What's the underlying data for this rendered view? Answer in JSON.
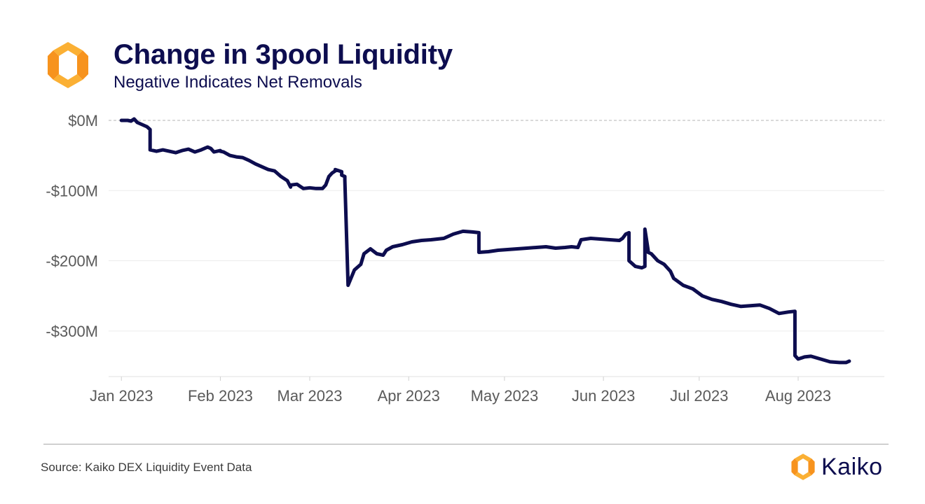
{
  "header": {
    "title": "Change in 3pool Liquidity",
    "subtitle": "Negative Indicates Net Removals"
  },
  "footer": {
    "source": "Source: Kaiko DEX Liquidity Event Data",
    "brand": "Kaiko"
  },
  "colors": {
    "title": "#0d0d4f",
    "line": "#0d0d4f",
    "logo_orange": "#f7931e",
    "logo_yellow": "#fbb034"
  },
  "icons": {
    "top_logo": "kaiko-logo-icon",
    "footer_logo": "kaiko-logo-icon"
  },
  "chart_data": {
    "type": "line",
    "title": "Change in 3pool Liquidity",
    "subtitle": "Negative Indicates Net Removals",
    "xlabel": "",
    "ylabel": "",
    "x_type": "date",
    "xlim": [
      "2022-12-28",
      "2023-08-28"
    ],
    "ylim": [
      -365,
      0
    ],
    "yticks": [
      0,
      -100,
      -200,
      -300
    ],
    "ytick_labels": [
      "$0M",
      "-$100M",
      "-$200M",
      "-$300M"
    ],
    "xticks": [
      "2023-01-01",
      "2023-02-01",
      "2023-03-01",
      "2023-04-01",
      "2023-05-01",
      "2023-06-01",
      "2023-07-01",
      "2023-08-01"
    ],
    "xtick_labels": [
      "Jan 2023",
      "Feb 2023",
      "Mar 2023",
      "Apr 2023",
      "May 2023",
      "Jun 2023",
      "Jul 2023",
      "Aug 2023"
    ],
    "grid": "horizontal",
    "zero_line": "dashed",
    "series": [
      {
        "x": [
          "2023-01-01",
          "2023-01-03",
          "2023-01-04",
          "2023-01-05",
          "2023-01-06",
          "2023-01-07",
          "2023-01-08",
          "2023-01-09",
          "2023-01-10",
          "2023-01-10",
          "2023-01-12",
          "2023-01-14",
          "2023-01-16",
          "2023-01-18",
          "2023-01-20",
          "2023-01-22",
          "2023-01-24",
          "2023-01-26",
          "2023-01-27",
          "2023-01-28",
          "2023-01-29",
          "2023-01-30",
          "2023-01-31",
          "2023-02-01",
          "2023-02-01",
          "2023-02-02",
          "2023-02-04",
          "2023-02-06",
          "2023-02-08",
          "2023-02-10",
          "2023-02-12",
          "2023-02-14",
          "2023-02-16",
          "2023-02-18",
          "2023-02-20",
          "2023-02-22",
          "2023-02-23",
          "2023-02-23",
          "2023-02-25",
          "2023-02-27",
          "2023-03-01",
          "2023-03-03",
          "2023-03-05",
          "2023-03-06",
          "2023-03-07",
          "2023-03-08",
          "2023-03-09",
          "2023-03-09",
          "2023-03-11",
          "2023-03-11",
          "2023-03-12",
          "2023-03-12",
          "2023-03-13",
          "2023-03-15",
          "2023-03-17",
          "2023-03-18",
          "2023-03-20",
          "2023-03-22",
          "2023-03-24",
          "2023-03-25",
          "2023-03-27",
          "2023-03-30",
          "2023-04-02",
          "2023-04-05",
          "2023-04-08",
          "2023-04-10",
          "2023-04-12",
          "2023-04-15",
          "2023-04-18",
          "2023-04-21",
          "2023-04-23",
          "2023-04-23",
          "2023-04-26",
          "2023-04-29",
          "2023-05-02",
          "2023-05-05",
          "2023-05-08",
          "2023-05-11",
          "2023-05-14",
          "2023-05-17",
          "2023-05-20",
          "2023-05-22",
          "2023-05-24",
          "2023-05-25",
          "2023-05-28",
          "2023-05-31",
          "2023-06-03",
          "2023-06-06",
          "2023-06-07",
          "2023-06-08",
          "2023-06-09",
          "2023-06-09",
          "2023-06-11",
          "2023-06-13",
          "2023-06-14",
          "2023-06-14",
          "2023-06-15",
          "2023-06-15",
          "2023-06-16",
          "2023-06-18",
          "2023-06-20",
          "2023-06-22",
          "2023-06-23",
          "2023-06-26",
          "2023-06-29",
          "2023-07-02",
          "2023-07-05",
          "2023-07-08",
          "2023-07-11",
          "2023-07-14",
          "2023-07-17",
          "2023-07-20",
          "2023-07-23",
          "2023-07-26",
          "2023-07-29",
          "2023-07-31",
          "2023-07-31",
          "2023-08-01",
          "2023-08-03",
          "2023-08-05",
          "2023-08-08",
          "2023-08-11",
          "2023-08-14",
          "2023-08-16",
          "2023-08-17"
        ],
        "values": [
          0,
          0,
          -1,
          2,
          -3,
          -5,
          -7,
          -9,
          -13,
          -42,
          -44,
          -42,
          -44,
          -46,
          -43,
          -41,
          -45,
          -42,
          -40,
          -38,
          -40,
          -45,
          -44,
          -43,
          -44,
          -45,
          -50,
          -52,
          -53,
          -57,
          -62,
          -66,
          -70,
          -72,
          -80,
          -86,
          -95,
          -92,
          -91,
          -97,
          -96,
          -97,
          -97,
          -92,
          -80,
          -75,
          -72,
          -70,
          -73,
          -78,
          -80,
          -85,
          -235,
          -213,
          -205,
          -190,
          -183,
          -190,
          -192,
          -185,
          -180,
          -177,
          -173,
          -171,
          -170,
          -169,
          -168,
          -162,
          -158,
          -159,
          -160,
          -188,
          -187,
          -185,
          -184,
          -183,
          -182,
          -181,
          -180,
          -182,
          -181,
          -180,
          -181,
          -170,
          -168,
          -169,
          -170,
          -171,
          -168,
          -162,
          -160,
          -200,
          -208,
          -210,
          -208,
          -155,
          -185,
          -188,
          -190,
          -200,
          -205,
          -215,
          -225,
          -235,
          -240,
          -250,
          -255,
          -258,
          -262,
          -265,
          -264,
          -263,
          -268,
          -275,
          -273,
          -272,
          -335,
          -340,
          -337,
          -336,
          -340,
          -344,
          -345,
          -345,
          -343
        ]
      }
    ]
  }
}
